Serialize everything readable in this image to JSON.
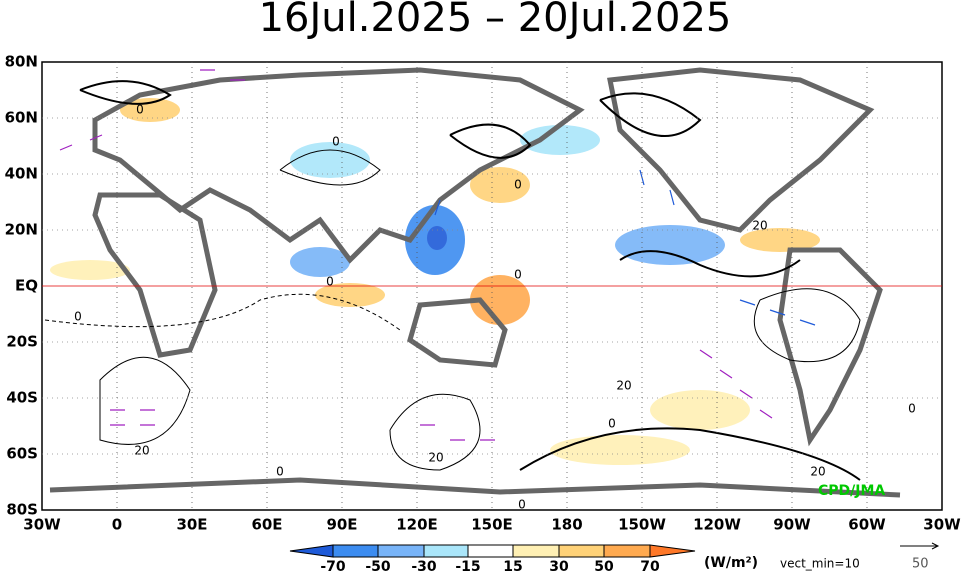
{
  "header": {
    "title": "16Jul.2025  –  20Jul.2025"
  },
  "map": {
    "lat_labels": [
      "80N",
      "60N",
      "40N",
      "20N",
      "EQ",
      "20S",
      "40S",
      "60S",
      "80S"
    ],
    "lon_labels": [
      "30W",
      "0",
      "30E",
      "60E",
      "90E",
      "120E",
      "150E",
      "180",
      "150W",
      "120W",
      "90W",
      "60W",
      "30W"
    ],
    "contour_labels": [
      "0",
      "0",
      "0",
      "0",
      "0",
      "0",
      "0",
      "0",
      "20",
      "20",
      "20",
      "20",
      "20",
      "0",
      "0"
    ],
    "credit": "CPD/JMA"
  },
  "colorbar": {
    "labels": [
      -70,
      -50,
      -30,
      -15,
      15,
      30,
      50,
      70
    ],
    "unit": "(W/m²)",
    "vector_note": "vect_min=10",
    "vector_ref": "50"
  }
}
